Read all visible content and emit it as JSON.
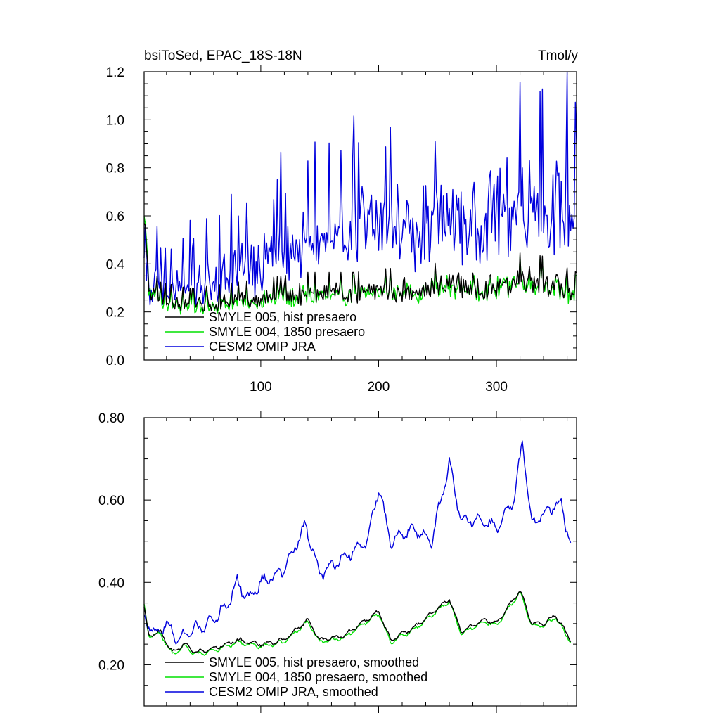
{
  "chart_data": [
    {
      "type": "line",
      "title_left": "bsiToSed, EPAC_18S-18N",
      "title_right": "Tmol/y",
      "xlim": [
        1,
        368
      ],
      "ylim": [
        0.0,
        1.2
      ],
      "xticks": [
        100,
        200,
        300
      ],
      "xtick_labels": [
        "100",
        "200",
        "300"
      ],
      "yticks": [
        0.0,
        0.2,
        0.4,
        0.6,
        0.8,
        1.0,
        1.2
      ],
      "ytick_labels": [
        "0.0",
        "0.2",
        "0.4",
        "0.6",
        "0.8",
        "1.0",
        "1.2"
      ],
      "legend_position": "bottom-left",
      "series": [
        {
          "name": "SMYLE 005, hist presaero",
          "color": "#000000",
          "style": "noisy",
          "x_range": [
            1,
            368
          ],
          "knots": [
            [
              1,
              0.62
            ],
            [
              5,
              0.3
            ],
            [
              15,
              0.24
            ],
            [
              40,
              0.22
            ],
            [
              60,
              0.23
            ],
            [
              100,
              0.25
            ],
            [
              140,
              0.27
            ],
            [
              180,
              0.27
            ],
            [
              200,
              0.28
            ],
            [
              240,
              0.29
            ],
            [
              260,
              0.31
            ],
            [
              280,
              0.3
            ],
            [
              300,
              0.3
            ],
            [
              320,
              0.33
            ],
            [
              340,
              0.32
            ],
            [
              368,
              0.27
            ]
          ]
        },
        {
          "name": "SMYLE 004, 1850 presaero",
          "color": "#00e000",
          "style": "noisy",
          "x_range": [
            1,
            368
          ],
          "knots": [
            [
              1,
              0.65
            ],
            [
              5,
              0.3
            ],
            [
              15,
              0.23
            ],
            [
              40,
              0.21
            ],
            [
              60,
              0.22
            ],
            [
              100,
              0.24
            ],
            [
              140,
              0.26
            ],
            [
              180,
              0.26
            ],
            [
              200,
              0.27
            ],
            [
              240,
              0.28
            ],
            [
              260,
              0.3
            ],
            [
              280,
              0.29
            ],
            [
              300,
              0.29
            ],
            [
              320,
              0.32
            ],
            [
              340,
              0.31
            ],
            [
              368,
              0.26
            ]
          ]
        },
        {
          "name": "CESM2 OMIP JRA",
          "color": "#0000dd",
          "style": "noisy",
          "x_range": [
            1,
            368
          ],
          "knots": [
            [
              1,
              0.5
            ],
            [
              5,
              0.3
            ],
            [
              20,
              0.28
            ],
            [
              40,
              0.28
            ],
            [
              60,
              0.32
            ],
            [
              80,
              0.36
            ],
            [
              100,
              0.4
            ],
            [
              120,
              0.42
            ],
            [
              140,
              0.47
            ],
            [
              160,
              0.47
            ],
            [
              180,
              0.52
            ],
            [
              200,
              0.54
            ],
            [
              220,
              0.52
            ],
            [
              240,
              0.55
            ],
            [
              260,
              0.58
            ],
            [
              280,
              0.56
            ],
            [
              300,
              0.6
            ],
            [
              320,
              0.64
            ],
            [
              340,
              0.58
            ],
            [
              360,
              0.6
            ],
            [
              368,
              0.5
            ]
          ]
        }
      ]
    },
    {
      "type": "line",
      "xlim": [
        1,
        368
      ],
      "ylim": [
        0.1,
        0.8
      ],
      "xticks": [
        100,
        200,
        300
      ],
      "yticks": [
        0.2,
        0.4,
        0.6,
        0.8
      ],
      "ytick_labels": [
        "0.20",
        "0.40",
        "0.60",
        "0.80"
      ],
      "legend_position": "bottom-left",
      "series": [
        {
          "name": "SMYLE 005, hist presaero, smoothed",
          "color": "#000000",
          "style": "smooth",
          "x_range": [
            1,
            363
          ],
          "knots": [
            [
              1,
              0.34
            ],
            [
              5,
              0.27
            ],
            [
              15,
              0.28
            ],
            [
              25,
              0.23
            ],
            [
              35,
              0.25
            ],
            [
              45,
              0.23
            ],
            [
              60,
              0.24
            ],
            [
              80,
              0.26
            ],
            [
              100,
              0.25
            ],
            [
              120,
              0.26
            ],
            [
              140,
              0.31
            ],
            [
              150,
              0.26
            ],
            [
              170,
              0.27
            ],
            [
              200,
              0.33
            ],
            [
              210,
              0.26
            ],
            [
              230,
              0.29
            ],
            [
              260,
              0.36
            ],
            [
              270,
              0.28
            ],
            [
              290,
              0.31
            ],
            [
              300,
              0.3
            ],
            [
              320,
              0.38
            ],
            [
              330,
              0.3
            ],
            [
              340,
              0.3
            ],
            [
              350,
              0.32
            ],
            [
              363,
              0.26
            ]
          ]
        },
        {
          "name": "SMYLE 004, 1850 presaero, smoothed",
          "color": "#00e000",
          "style": "smooth",
          "x_range": [
            1,
            363
          ],
          "knots": [
            [
              1,
              0.345
            ],
            [
              5,
              0.27
            ],
            [
              15,
              0.275
            ],
            [
              25,
              0.225
            ],
            [
              35,
              0.245
            ],
            [
              45,
              0.225
            ],
            [
              60,
              0.235
            ],
            [
              80,
              0.255
            ],
            [
              100,
              0.245
            ],
            [
              120,
              0.255
            ],
            [
              140,
              0.305
            ],
            [
              150,
              0.255
            ],
            [
              170,
              0.265
            ],
            [
              200,
              0.325
            ],
            [
              210,
              0.255
            ],
            [
              230,
              0.285
            ],
            [
              260,
              0.355
            ],
            [
              270,
              0.275
            ],
            [
              290,
              0.305
            ],
            [
              300,
              0.295
            ],
            [
              320,
              0.375
            ],
            [
              330,
              0.295
            ],
            [
              340,
              0.295
            ],
            [
              350,
              0.315
            ],
            [
              363,
              0.255
            ]
          ]
        },
        {
          "name": "CESM2 OMIP JRA, smoothed",
          "color": "#0000dd",
          "style": "smooth",
          "x_range": [
            1,
            363
          ],
          "knots": [
            [
              1,
              0.32
            ],
            [
              10,
              0.27
            ],
            [
              20,
              0.3
            ],
            [
              30,
              0.26
            ],
            [
              40,
              0.28
            ],
            [
              55,
              0.3
            ],
            [
              70,
              0.34
            ],
            [
              80,
              0.4
            ],
            [
              90,
              0.36
            ],
            [
              100,
              0.4
            ],
            [
              120,
              0.43
            ],
            [
              138,
              0.54
            ],
            [
              150,
              0.42
            ],
            [
              170,
              0.46
            ],
            [
              190,
              0.5
            ],
            [
              200,
              0.63
            ],
            [
              210,
              0.5
            ],
            [
              230,
              0.53
            ],
            [
              245,
              0.5
            ],
            [
              260,
              0.69
            ],
            [
              270,
              0.55
            ],
            [
              290,
              0.55
            ],
            [
              300,
              0.53
            ],
            [
              315,
              0.6
            ],
            [
              322,
              0.74
            ],
            [
              330,
              0.54
            ],
            [
              345,
              0.58
            ],
            [
              355,
              0.59
            ],
            [
              363,
              0.49
            ]
          ]
        }
      ]
    }
  ]
}
